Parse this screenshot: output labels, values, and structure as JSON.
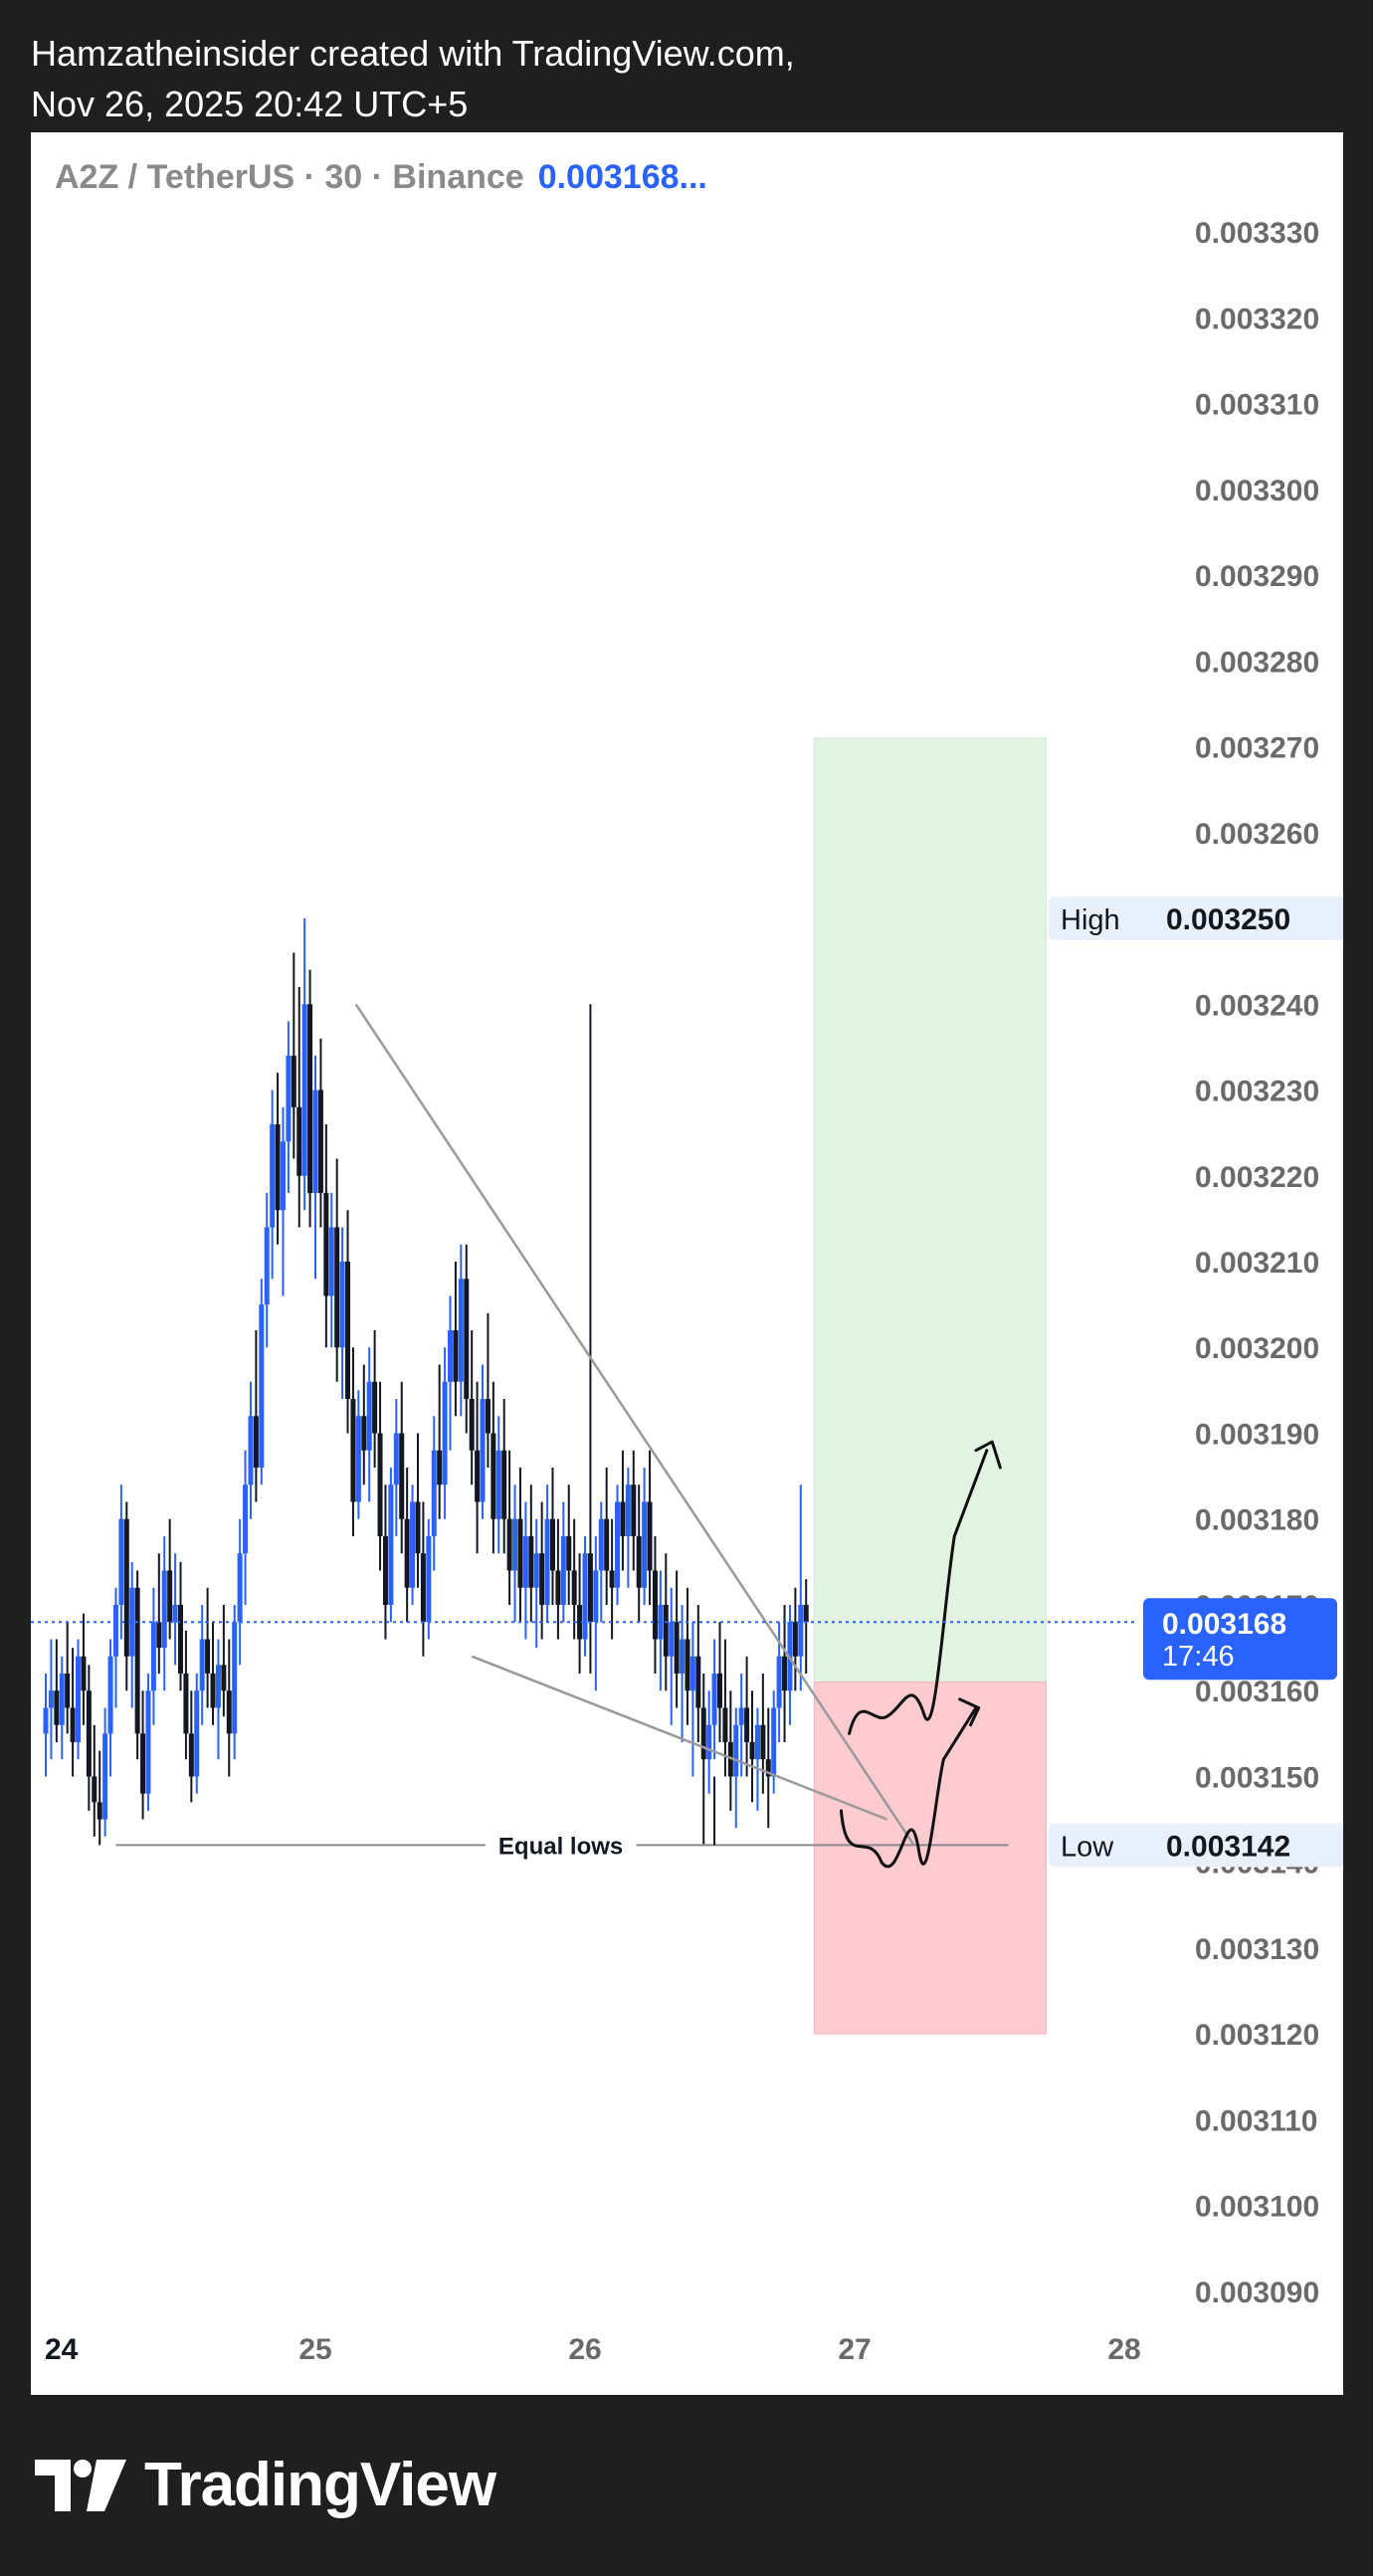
{
  "header": {
    "line1": "Hamzatheinsider created with TradingView.com,",
    "line2": "Nov 26, 2025 20:42 UTC+5"
  },
  "legend": {
    "symbol": "A2Z / TetherUS · 30 · Binance",
    "price": "0.003168..."
  },
  "footer": {
    "brand": "TradingView"
  },
  "colors": {
    "up": "#2962ff",
    "down": "#131722",
    "target_zone": "#e3f3e3",
    "stop_zone": "#fdcbd0",
    "current_price": "#2962ff",
    "label_bg": "#e8f0fb"
  },
  "chart_data": {
    "type": "candlestick",
    "symbol": "A2Z / TetherUS",
    "interval": "30",
    "exchange": "Binance",
    "y_axis": {
      "min": 0.003085,
      "max": 0.003335,
      "ticks": [
        "0.003330",
        "0.003320",
        "0.003310",
        "0.003300",
        "0.003290",
        "0.003280",
        "0.003270",
        "0.003260",
        "0.003250",
        "0.003240",
        "0.003230",
        "0.003220",
        "0.003210",
        "0.003200",
        "0.003190",
        "0.003180",
        "0.003170",
        "0.003160",
        "0.003150",
        "0.003140",
        "0.003130",
        "0.003120",
        "0.003110",
        "0.003100",
        "0.003090"
      ]
    },
    "x_axis": {
      "min": 23.98,
      "max": 28.3,
      "ticks": [
        {
          "label": "24",
          "value": 24.0
        },
        {
          "label": "25",
          "value": 25.0
        },
        {
          "label": "26",
          "value": 26.0
        },
        {
          "label": "27",
          "value": 27.0
        },
        {
          "label": "28",
          "value": 28.0
        }
      ]
    },
    "ohlc": [
      [
        24.0,
        0.003155,
        0.003162,
        0.00315,
        0.003158
      ],
      [
        24.02,
        0.003158,
        0.003166,
        0.003152,
        0.00316
      ],
      [
        24.04,
        0.00316,
        0.003166,
        0.003154,
        0.003156
      ],
      [
        24.06,
        0.003156,
        0.003164,
        0.003152,
        0.003162
      ],
      [
        24.08,
        0.003162,
        0.003168,
        0.003155,
        0.003158
      ],
      [
        24.1,
        0.003158,
        0.003165,
        0.00315,
        0.003154
      ],
      [
        24.12,
        0.003154,
        0.003166,
        0.003152,
        0.003164
      ],
      [
        24.14,
        0.003164,
        0.003169,
        0.003156,
        0.00316
      ],
      [
        24.16,
        0.00316,
        0.003163,
        0.003146,
        0.00315
      ],
      [
        24.18,
        0.00315,
        0.003156,
        0.003143,
        0.003147
      ],
      [
        24.2,
        0.003147,
        0.003153,
        0.003142,
        0.003145
      ],
      [
        24.22,
        0.003145,
        0.003158,
        0.003143,
        0.003155
      ],
      [
        24.24,
        0.003155,
        0.003166,
        0.00315,
        0.003164
      ],
      [
        24.26,
        0.003164,
        0.003172,
        0.003158,
        0.00317
      ],
      [
        24.28,
        0.00317,
        0.003184,
        0.003166,
        0.00318
      ],
      [
        24.3,
        0.00318,
        0.003182,
        0.00316,
        0.003164
      ],
      [
        24.32,
        0.003164,
        0.003175,
        0.003158,
        0.003172
      ],
      [
        24.34,
        0.003172,
        0.003174,
        0.003152,
        0.003155
      ],
      [
        24.36,
        0.003155,
        0.00316,
        0.003145,
        0.003148
      ],
      [
        24.38,
        0.003148,
        0.003162,
        0.003146,
        0.00316
      ],
      [
        24.4,
        0.00316,
        0.003172,
        0.003156,
        0.003168
      ],
      [
        24.42,
        0.003168,
        0.003176,
        0.003162,
        0.003165
      ],
      [
        24.44,
        0.003165,
        0.003178,
        0.00316,
        0.003174
      ],
      [
        24.46,
        0.003174,
        0.00318,
        0.003166,
        0.003168
      ],
      [
        24.48,
        0.003168,
        0.003176,
        0.003163,
        0.00317
      ],
      [
        24.5,
        0.00317,
        0.003175,
        0.00316,
        0.003162
      ],
      [
        24.52,
        0.003162,
        0.003167,
        0.003152,
        0.003155
      ],
      [
        24.54,
        0.003155,
        0.00316,
        0.003147,
        0.00315
      ],
      [
        24.56,
        0.00315,
        0.003162,
        0.003148,
        0.00316
      ],
      [
        24.58,
        0.00316,
        0.00317,
        0.003156,
        0.003166
      ],
      [
        24.6,
        0.003166,
        0.003172,
        0.003158,
        0.003162
      ],
      [
        24.62,
        0.003162,
        0.003168,
        0.003156,
        0.003158
      ],
      [
        24.64,
        0.003158,
        0.003166,
        0.003152,
        0.003163
      ],
      [
        24.66,
        0.003163,
        0.00317,
        0.003157,
        0.00316
      ],
      [
        24.68,
        0.00316,
        0.003166,
        0.00315,
        0.003155
      ],
      [
        24.7,
        0.003155,
        0.00317,
        0.003152,
        0.003168
      ],
      [
        24.72,
        0.003168,
        0.00318,
        0.003163,
        0.003176
      ],
      [
        24.74,
        0.003176,
        0.003188,
        0.00317,
        0.003184
      ],
      [
        24.76,
        0.003184,
        0.003196,
        0.00318,
        0.003192
      ],
      [
        24.78,
        0.003192,
        0.003202,
        0.003182,
        0.003186
      ],
      [
        24.8,
        0.003186,
        0.003208,
        0.003184,
        0.003205
      ],
      [
        24.82,
        0.003205,
        0.003218,
        0.0032,
        0.003214
      ],
      [
        24.84,
        0.003214,
        0.00323,
        0.003208,
        0.003226
      ],
      [
        24.86,
        0.003226,
        0.003232,
        0.003212,
        0.003216
      ],
      [
        24.88,
        0.003216,
        0.003228,
        0.003206,
        0.003224
      ],
      [
        24.9,
        0.003224,
        0.003238,
        0.003218,
        0.003234
      ],
      [
        24.92,
        0.003234,
        0.003246,
        0.003222,
        0.003228
      ],
      [
        24.94,
        0.003228,
        0.003242,
        0.003214,
        0.00322
      ],
      [
        24.96,
        0.00322,
        0.00325,
        0.003216,
        0.00324
      ],
      [
        24.98,
        0.00324,
        0.003244,
        0.003214,
        0.003218
      ],
      [
        25.0,
        0.003218,
        0.003234,
        0.003208,
        0.00323
      ],
      [
        25.02,
        0.00323,
        0.003236,
        0.003214,
        0.003218
      ],
      [
        25.04,
        0.003218,
        0.003226,
        0.0032,
        0.003206
      ],
      [
        25.06,
        0.003206,
        0.003218,
        0.0032,
        0.003214
      ],
      [
        25.08,
        0.003214,
        0.003222,
        0.003196,
        0.0032
      ],
      [
        25.1,
        0.0032,
        0.003214,
        0.003194,
        0.00321
      ],
      [
        25.12,
        0.00321,
        0.003216,
        0.00319,
        0.003194
      ],
      [
        25.14,
        0.003194,
        0.0032,
        0.003178,
        0.003182
      ],
      [
        25.16,
        0.003182,
        0.003195,
        0.00318,
        0.003192
      ],
      [
        25.18,
        0.003192,
        0.003198,
        0.003184,
        0.003188
      ],
      [
        25.2,
        0.003188,
        0.0032,
        0.003182,
        0.003196
      ],
      [
        25.22,
        0.003196,
        0.003202,
        0.003186,
        0.00319
      ],
      [
        25.24,
        0.00319,
        0.003196,
        0.003174,
        0.003178
      ],
      [
        25.26,
        0.003178,
        0.003184,
        0.003166,
        0.00317
      ],
      [
        25.28,
        0.00317,
        0.003186,
        0.003168,
        0.003184
      ],
      [
        25.3,
        0.003184,
        0.003194,
        0.003178,
        0.00319
      ],
      [
        25.32,
        0.00319,
        0.003196,
        0.003176,
        0.00318
      ],
      [
        25.34,
        0.00318,
        0.003186,
        0.003168,
        0.003172
      ],
      [
        25.36,
        0.003172,
        0.003184,
        0.00317,
        0.003182
      ],
      [
        25.38,
        0.003182,
        0.00319,
        0.003172,
        0.003176
      ],
      [
        25.4,
        0.003176,
        0.003182,
        0.003164,
        0.003168
      ],
      [
        25.42,
        0.003168,
        0.00318,
        0.003166,
        0.003178
      ],
      [
        25.44,
        0.003178,
        0.003192,
        0.003174,
        0.003188
      ],
      [
        25.46,
        0.003188,
        0.003198,
        0.00318,
        0.003184
      ],
      [
        25.48,
        0.003184,
        0.0032,
        0.00318,
        0.003196
      ],
      [
        25.5,
        0.003196,
        0.003206,
        0.003188,
        0.003202
      ],
      [
        25.52,
        0.003202,
        0.00321,
        0.003192,
        0.003196
      ],
      [
        25.54,
        0.003196,
        0.003212,
        0.003192,
        0.003208
      ],
      [
        25.56,
        0.003208,
        0.003212,
        0.00319,
        0.003194
      ],
      [
        25.58,
        0.003194,
        0.003202,
        0.003184,
        0.003188
      ],
      [
        25.6,
        0.003188,
        0.003196,
        0.003176,
        0.003182
      ],
      [
        25.62,
        0.003182,
        0.003198,
        0.00318,
        0.003194
      ],
      [
        25.64,
        0.003194,
        0.003204,
        0.003186,
        0.00319
      ],
      [
        25.66,
        0.00319,
        0.003196,
        0.003176,
        0.00318
      ],
      [
        25.68,
        0.00318,
        0.003192,
        0.003176,
        0.003188
      ],
      [
        25.7,
        0.003188,
        0.003194,
        0.003176,
        0.00318
      ],
      [
        25.72,
        0.00318,
        0.003188,
        0.00317,
        0.003174
      ],
      [
        25.74,
        0.003174,
        0.003184,
        0.003168,
        0.00318
      ],
      [
        25.76,
        0.00318,
        0.003186,
        0.003168,
        0.003172
      ],
      [
        25.78,
        0.003172,
        0.003182,
        0.003166,
        0.003178
      ],
      [
        25.8,
        0.003178,
        0.003184,
        0.003168,
        0.003172
      ],
      [
        25.82,
        0.003172,
        0.00318,
        0.003165,
        0.003176
      ],
      [
        25.84,
        0.003176,
        0.003182,
        0.003166,
        0.00317
      ],
      [
        25.86,
        0.00317,
        0.003184,
        0.003168,
        0.00318
      ],
      [
        25.88,
        0.00318,
        0.003186,
        0.00317,
        0.003174
      ],
      [
        25.9,
        0.003174,
        0.00318,
        0.003166,
        0.00317
      ],
      [
        25.92,
        0.00317,
        0.003182,
        0.003168,
        0.003178
      ],
      [
        25.94,
        0.003178,
        0.003184,
        0.00317,
        0.003174
      ],
      [
        25.96,
        0.003174,
        0.00318,
        0.003166,
        0.00317
      ],
      [
        25.98,
        0.00317,
        0.003176,
        0.003162,
        0.003166
      ],
      [
        26.0,
        0.003166,
        0.003178,
        0.003164,
        0.003176
      ],
      [
        26.02,
        0.003176,
        0.00324,
        0.003162,
        0.003168
      ],
      [
        26.04,
        0.003168,
        0.003178,
        0.00316,
        0.003174
      ],
      [
        26.06,
        0.003174,
        0.003182,
        0.003168,
        0.00318
      ],
      [
        26.08,
        0.00318,
        0.003186,
        0.00317,
        0.003174
      ],
      [
        26.1,
        0.003174,
        0.00318,
        0.003166,
        0.003172
      ],
      [
        26.12,
        0.003172,
        0.003184,
        0.00317,
        0.003182
      ],
      [
        26.14,
        0.003182,
        0.003188,
        0.003174,
        0.003178
      ],
      [
        26.16,
        0.003178,
        0.003186,
        0.003172,
        0.003184
      ],
      [
        26.18,
        0.003184,
        0.003188,
        0.003174,
        0.003178
      ],
      [
        26.2,
        0.003178,
        0.003184,
        0.003168,
        0.003172
      ],
      [
        26.22,
        0.003172,
        0.003186,
        0.00317,
        0.003182
      ],
      [
        26.24,
        0.003182,
        0.003188,
        0.00317,
        0.003174
      ],
      [
        26.26,
        0.003174,
        0.003178,
        0.003162,
        0.003166
      ],
      [
        26.28,
        0.003166,
        0.003174,
        0.00316,
        0.00317
      ],
      [
        26.3,
        0.00317,
        0.003176,
        0.00316,
        0.003164
      ],
      [
        26.32,
        0.003164,
        0.003172,
        0.003156,
        0.003168
      ],
      [
        26.34,
        0.003168,
        0.003174,
        0.003158,
        0.003162
      ],
      [
        26.36,
        0.003162,
        0.00317,
        0.003154,
        0.003166
      ],
      [
        26.38,
        0.003166,
        0.003172,
        0.003156,
        0.00316
      ],
      [
        26.4,
        0.00316,
        0.003168,
        0.00315,
        0.003164
      ],
      [
        26.42,
        0.003164,
        0.00317,
        0.003154,
        0.003158
      ],
      [
        26.44,
        0.003158,
        0.003162,
        0.003142,
        0.003152
      ],
      [
        26.46,
        0.003152,
        0.00316,
        0.003148,
        0.003156
      ],
      [
        26.48,
        0.003156,
        0.003166,
        0.003152,
        0.003162
      ],
      [
        26.5,
        0.003162,
        0.003168,
        0.003154,
        0.003158
      ],
      [
        26.52,
        0.003158,
        0.003166,
        0.00315,
        0.003154
      ],
      [
        26.54,
        0.003154,
        0.00316,
        0.003146,
        0.00315
      ],
      [
        26.56,
        0.00315,
        0.003158,
        0.003144,
        0.003156
      ],
      [
        26.58,
        0.003156,
        0.003162,
        0.00315,
        0.003158
      ],
      [
        26.6,
        0.003158,
        0.003164,
        0.00315,
        0.003154
      ],
      [
        26.62,
        0.003154,
        0.00316,
        0.003147,
        0.003152
      ],
      [
        26.64,
        0.003152,
        0.003158,
        0.003146,
        0.003156
      ],
      [
        26.66,
        0.003156,
        0.003162,
        0.003148,
        0.003152
      ],
      [
        26.68,
        0.003152,
        0.003158,
        0.003144,
        0.00315
      ],
      [
        26.7,
        0.00315,
        0.00316,
        0.003148,
        0.003158
      ],
      [
        26.72,
        0.003158,
        0.003168,
        0.003154,
        0.003164
      ],
      [
        26.74,
        0.003164,
        0.00317,
        0.003154,
        0.00316
      ],
      [
        26.76,
        0.00316,
        0.00317,
        0.003156,
        0.003168
      ],
      [
        26.78,
        0.003168,
        0.003172,
        0.00316,
        0.003164
      ],
      [
        26.8,
        0.003164,
        0.003184,
        0.00316,
        0.00317
      ],
      [
        26.82,
        0.00317,
        0.003173,
        0.003162,
        0.003168
      ]
    ],
    "current_price": {
      "value": 0.003168,
      "label": "0.003168",
      "countdown": "17:46"
    },
    "high_marker": {
      "label": "High",
      "value": 0.00325,
      "value_label": "0.003250"
    },
    "low_marker": {
      "label": "Low",
      "value": 0.003142,
      "value_label": "0.003142"
    },
    "position": {
      "entry": 0.003161,
      "target": 0.003271,
      "stop": 0.00312,
      "x_start": 26.85,
      "x_end": 27.71
    },
    "equal_lows": {
      "label": "Equal lows",
      "value": 0.003142,
      "x_start": 24.26,
      "x_end": 27.57
    },
    "wedge": {
      "upper": [
        [
          25.15,
          0.00324
        ],
        [
          27.22,
          0.003142
        ]
      ],
      "lower": [
        [
          25.58,
          0.003164
        ],
        [
          27.12,
          0.003145
        ]
      ]
    }
  }
}
